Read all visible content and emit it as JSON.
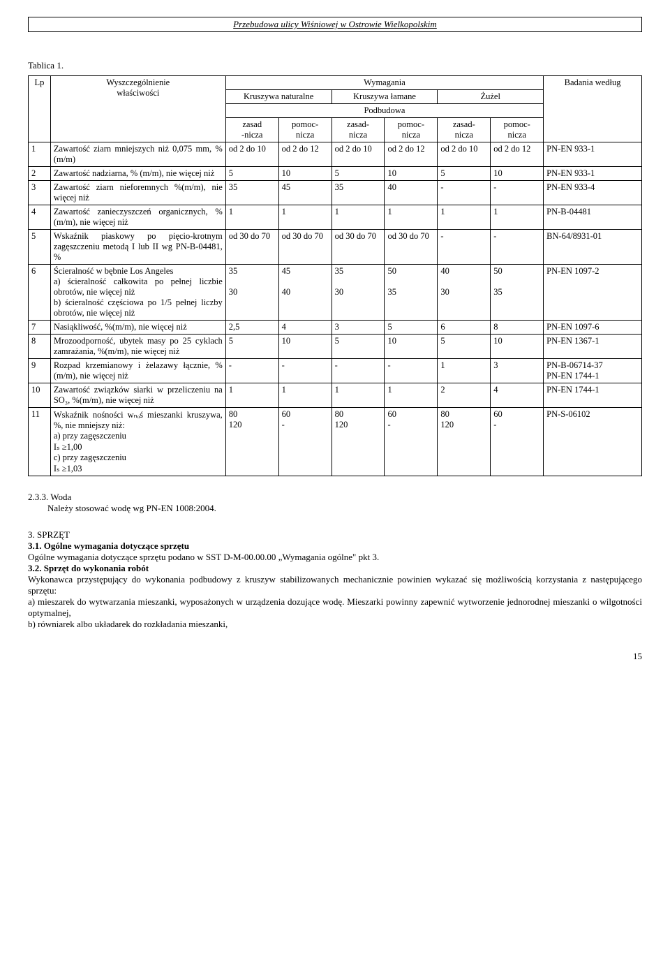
{
  "header": "Przebudowa ulicy Wiśniowej w Ostrowie Wielkopolskim",
  "table_label": "Tablica 1.",
  "thead": {
    "lp": "Lp",
    "desc1": "Wyszczególnienie",
    "desc2": "właściwości",
    "wymagania": "Wymagania",
    "kr_nat": "Kruszywa naturalne",
    "kr_lam": "Kruszywa łamane",
    "zuzel": "Żużel",
    "podbudowa": "Podbudowa",
    "zasad1": "zasad\n-nicza",
    "pomoc1": "pomoc-\nnicza",
    "zasad2": "zasad-\nnicza",
    "pomoc2": "pomoc-\nnicza",
    "zasad3": "zasad-\nnicza",
    "pomoc3": "pomoc-\nnicza",
    "badania": "Badania według"
  },
  "rows": [
    {
      "lp": "1",
      "desc": "Zawartość ziarn mniejszych niż 0,075 mm, % (m/m)",
      "v": [
        "od 2 do 10",
        "od 2 do 12",
        "od 2 do 10",
        "od 2 do 12",
        "od 2 do 10",
        "od 2 do 12"
      ],
      "bad": "PN-EN 933-1"
    },
    {
      "lp": "2",
      "desc": "Zawartość nadziarna, % (m/m), nie więcej niż",
      "v": [
        "5",
        "10",
        "5",
        "10",
        "5",
        "10"
      ],
      "bad": "PN-EN 933-1"
    },
    {
      "lp": "3",
      "desc": "Zawartość ziarn nieforemnych %(m/m), nie więcej niż",
      "v": [
        "35",
        "45",
        "35",
        "40",
        "-",
        "-"
      ],
      "bad": "PN-EN 933-4"
    },
    {
      "lp": "4",
      "desc": "Zawartość zanieczyszczeń organicznych, %(m/m), nie więcej niż",
      "v": [
        "1",
        "1",
        "1",
        "1",
        "1",
        "1"
      ],
      "bad": "PN-B-04481"
    },
    {
      "lp": "5",
      "desc": "Wskaźnik piaskowy po pięcio-krotnym zagęszczeniu metodą I lub II wg PN-B-04481, %",
      "v": [
        "od 30 do 70",
        "od 30 do 70",
        "od 30 do 70",
        "od 30 do 70",
        "-",
        "-"
      ],
      "bad": "BN-64/8931-01"
    },
    {
      "lp": "6",
      "desc": "Ścieralność w bębnie Los Angeles\na) ścieralność całkowita po pełnej liczbie obrotów, nie więcej niż\nb) ścieralność częściowa po 1/5 pełnej liczby obrotów, nie więcej niż",
      "v": [
        "35\n\n30",
        "45\n\n40",
        "35\n\n30",
        "50\n\n35",
        "40\n\n30",
        "50\n\n35"
      ],
      "bad": "PN-EN 1097-2"
    },
    {
      "lp": "7",
      "desc": "Nasiąkliwość, %(m/m), nie więcej niż",
      "v": [
        "2,5",
        "4",
        "3",
        "5",
        "6",
        "8"
      ],
      "bad": "PN-EN 1097-6"
    },
    {
      "lp": "8",
      "desc": "Mrozoodporność, ubytek masy po 25 cyklach zamrażania, %(m/m), nie więcej niż",
      "v": [
        "5",
        "10",
        "5",
        "10",
        "5",
        "10"
      ],
      "bad": "PN-EN 1367-1"
    },
    {
      "lp": "9",
      "desc": "Rozpad krzemianowy i żelazawy łącznie, % (m/m), nie więcej niż",
      "v": [
        "-",
        "-",
        "-",
        "-",
        "1",
        "3"
      ],
      "bad": "PN-B-06714-37\nPN-EN 1744-1"
    },
    {
      "lp": "10",
      "desc": "Zawartość związków siarki w przeliczeniu na SO₃, %(m/m), nie więcej niż",
      "v": [
        "1",
        "1",
        "1",
        "1",
        "2",
        "4"
      ],
      "bad": "PN-EN 1744-1"
    },
    {
      "lp": "11",
      "desc": "Wskaźnik nośności wₙₒś mieszanki kruszywa, %, nie mniejszy niż:\na) przy zagęszczeniu\n      Iₛ ≥1,00\nc)  przy zagęszczeniu\n      Iₛ ≥1,03",
      "v": [
        "80\n120",
        "60\n-",
        "80\n120",
        "60\n-",
        "80\n120",
        "60\n-"
      ],
      "bad": "PN-S-06102"
    }
  ],
  "body": {
    "s233": "2.3.3. Woda",
    "s233t": "Należy stosować wodę wg PN-EN 1008:2004.",
    "s3": "3. SPRZĘT",
    "s31": "3.1. Ogólne wymagania dotyczące sprzętu",
    "s31t": "Ogólne wymagania dotyczące sprzętu podano w SST D-M-00.00.00 „Wymagania ogólne\" pkt 3.",
    "s32": "3.2. Sprzęt do wykonania robót",
    "s32t": "Wykonawca przystępujący do wykonania podbudowy z kruszyw stabilizowanych mechanicznie  powinien wykazać się możliwością korzystania z następującego sprzętu:",
    "s32a": "a) mieszarek do wytwarzania mieszanki, wyposażonych w urządzenia dozujące wodę. Mieszarki powinny zapewnić wytworzenie jednorodnej mieszanki o wilgotności optymalnej,",
    "s32b": "b) równiarek albo układarek do rozkładania mieszanki,"
  },
  "page": "15"
}
